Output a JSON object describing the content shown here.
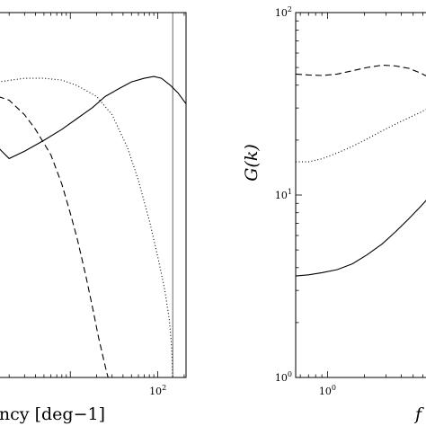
{
  "chart_data": [
    {
      "type": "line",
      "title": "",
      "x_scale": "log",
      "y_scale": "linear",
      "xlabel": "ency [deg−1]",
      "ylabel": "",
      "x_ticks": [
        {
          "value": 100,
          "base": "10",
          "exp": "2"
        }
      ],
      "xlim": [
        1.5,
        210
      ],
      "ylim": [
        0,
        1
      ],
      "grid": false,
      "vline": {
        "x": 148
      },
      "series": [
        {
          "style": "solid",
          "x": [
            1.5,
            2,
            3,
            5,
            8,
            12,
            18,
            25,
            35,
            50,
            70,
            90,
            110,
            140,
            170,
            210
          ],
          "y": [
            0.63,
            0.6,
            0.62,
            0.65,
            0.68,
            0.71,
            0.74,
            0.77,
            0.79,
            0.81,
            0.82,
            0.825,
            0.82,
            0.8,
            0.78,
            0.75
          ]
        },
        {
          "style": "dotted",
          "x": [
            1.5,
            3,
            5,
            8,
            12,
            20,
            30,
            45,
            60,
            80,
            100,
            120,
            135,
            142,
            146,
            147.5
          ],
          "y": [
            0.81,
            0.82,
            0.82,
            0.815,
            0.8,
            0.77,
            0.72,
            0.63,
            0.54,
            0.43,
            0.33,
            0.24,
            0.16,
            0.1,
            0.05,
            0.0
          ]
        },
        {
          "style": "dashed",
          "x": [
            1.5,
            2,
            3,
            4,
            6,
            8,
            10,
            12,
            15,
            18,
            21,
            24,
            26,
            27
          ],
          "y": [
            0.77,
            0.76,
            0.72,
            0.68,
            0.61,
            0.53,
            0.45,
            0.38,
            0.28,
            0.19,
            0.11,
            0.05,
            0.015,
            0.0
          ]
        }
      ]
    },
    {
      "type": "line",
      "title": "",
      "x_scale": "log",
      "y_scale": "log",
      "xlabel": "f",
      "ylabel": "G(k)",
      "x_ticks": [
        {
          "value": 1,
          "base": "10",
          "exp": "0"
        }
      ],
      "y_ticks": [
        {
          "value": 1,
          "base": "10",
          "exp": "0"
        },
        {
          "value": 10,
          "base": "10",
          "exp": "1"
        },
        {
          "value": 100,
          "base": "10",
          "exp": "2"
        }
      ],
      "xlim": [
        0.55,
        8.2
      ],
      "ylim": [
        1,
        100
      ],
      "grid": false,
      "series": [
        {
          "style": "solid",
          "x": [
            0.55,
            0.7,
            0.9,
            1.2,
            1.6,
            2.1,
            2.8,
            3.6,
            4.6,
            5.8,
            7,
            8.2
          ],
          "y": [
            3.6,
            3.65,
            3.75,
            3.9,
            4.2,
            4.7,
            5.4,
            6.3,
            7.4,
            8.7,
            10.0,
            11.2
          ]
        },
        {
          "style": "dotted",
          "x": [
            0.55,
            0.7,
            0.9,
            1.2,
            1.6,
            2.1,
            2.8,
            3.6,
            4.6,
            5.8,
            7,
            8.2
          ],
          "y": [
            15.2,
            15.2,
            15.8,
            17.0,
            18.5,
            20.3,
            22.5,
            24.5,
            26.5,
            28.5,
            30.5,
            32.0
          ]
        },
        {
          "style": "dashed",
          "x": [
            0.55,
            0.7,
            0.9,
            1.2,
            1.6,
            2.1,
            2.8,
            3.6,
            4.6,
            5.8,
            7,
            8.2
          ],
          "y": [
            46.0,
            45.5,
            45.2,
            46.0,
            48.0,
            50.0,
            51.5,
            51.0,
            49.5,
            46.5,
            43.5,
            42.0
          ]
        }
      ]
    }
  ]
}
